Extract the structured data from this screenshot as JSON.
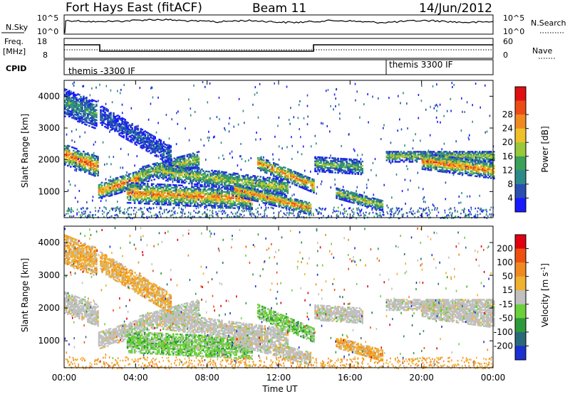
{
  "header": {
    "station": "Fort Hays East (fitACF)",
    "beam": "Beam 11",
    "date": "14/Jun/2012"
  },
  "top_panels": {
    "nsky": {
      "label": "N.Sky",
      "ticks": [
        "10^5",
        "10^0"
      ],
      "right_label": "N.Search",
      "right_ticks": [
        "10^5",
        "10^0"
      ]
    },
    "freq": {
      "label": "Freq.",
      "unit": "[MHz]",
      "ticks": [
        "18",
        "8"
      ],
      "right_label": "Nave",
      "right_ticks": [
        "60",
        "0"
      ]
    },
    "cpid": {
      "label": "CPID",
      "segments": [
        {
          "start_h": 0,
          "end_h": 18,
          "text": "themis -3300 IF"
        },
        {
          "start_h": 18,
          "end_h": 24,
          "text": "themis 3300 IF"
        }
      ]
    }
  },
  "chart_data": [
    {
      "type": "heatmap",
      "name": "power",
      "ylabel": "Slant Range [km]",
      "xlim": [
        0,
        24
      ],
      "ylim": [
        180,
        4500
      ],
      "yticks": [
        1000,
        2000,
        3000,
        4000
      ],
      "colorbar": {
        "label": "Power [dB]",
        "ticks": [
          "4",
          "8",
          "12",
          "16",
          "20",
          "24",
          "28"
        ],
        "colors": [
          "#1a1aff",
          "#2a4fb0",
          "#2e8a8a",
          "#3aa05a",
          "#9ac83a",
          "#f0c028",
          "#f08a20",
          "#ee4a18",
          "#e01010"
        ]
      },
      "bands": [
        {
          "t0": 0,
          "t1": 1.9,
          "r0": 2150,
          "r1": 1750,
          "w": 320,
          "level": 0.85
        },
        {
          "t0": 1.9,
          "t1": 4.2,
          "r0": 1000,
          "r1": 1400,
          "w": 260,
          "level": 0.8
        },
        {
          "t0": 4.2,
          "t1": 7.5,
          "r0": 1500,
          "r1": 2000,
          "w": 260,
          "level": 0.55
        },
        {
          "t0": 3.5,
          "t1": 10.5,
          "r0": 950,
          "r1": 750,
          "w": 320,
          "level": 0.75
        },
        {
          "t0": 5.5,
          "t1": 12.5,
          "r0": 1600,
          "r1": 1100,
          "w": 260,
          "level": 0.55
        },
        {
          "t0": 9.5,
          "t1": 13.8,
          "r0": 1050,
          "r1": 450,
          "w": 200,
          "level": 0.8
        },
        {
          "t0": 10.8,
          "t1": 14.0,
          "r0": 1900,
          "r1": 1150,
          "w": 220,
          "level": 0.75
        },
        {
          "t0": 14.0,
          "t1": 16.7,
          "r0": 1850,
          "r1": 1750,
          "w": 230,
          "level": 0.45
        },
        {
          "t0": 15.2,
          "t1": 17.8,
          "r0": 950,
          "r1": 550,
          "w": 180,
          "level": 0.55
        },
        {
          "t0": 18.0,
          "t1": 24.0,
          "r0": 2100,
          "r1": 2100,
          "w": 180,
          "level": 0.55
        },
        {
          "t0": 20.0,
          "t1": 24.0,
          "r0": 1950,
          "r1": 1650,
          "w": 260,
          "level": 0.8
        },
        {
          "t0": 0.0,
          "t1": 1.8,
          "r0": 3800,
          "r1": 3400,
          "w": 450,
          "level": 0.35
        },
        {
          "t0": 2.0,
          "t1": 6.0,
          "r0": 3400,
          "r1": 2100,
          "w": 300,
          "level": 0.2
        }
      ]
    },
    {
      "type": "heatmap",
      "name": "velocity",
      "ylabel": "Slant Range [km]",
      "xlabel": "Time UT",
      "xlim": [
        0,
        24
      ],
      "ylim": [
        180,
        4500
      ],
      "yticks": [
        1000,
        2000,
        3000,
        4000
      ],
      "xticks": [
        "00:00",
        "04:00",
        "08:00",
        "12:00",
        "16:00",
        "20:00",
        "00:00"
      ],
      "colorbar": {
        "label": "Velocity [m s",
        "label_sup": "-1",
        "label_end": "]",
        "ticks": [
          "200",
          "100",
          "50",
          "15",
          "-15",
          "-50",
          "-100",
          "-200"
        ],
        "colors": [
          "#1a30d0",
          "#2a6a78",
          "#2c9a3a",
          "#6cd03a",
          "#c0c0c0",
          "#f0b030",
          "#f08a20",
          "#ee5010",
          "#e00010"
        ]
      },
      "bands": [
        {
          "t0": 0,
          "t1": 1.9,
          "r0": 2150,
          "r1": 1750,
          "w": 320,
          "kind": "gray"
        },
        {
          "t0": 1.9,
          "t1": 4.2,
          "r0": 1000,
          "r1": 1400,
          "w": 260,
          "kind": "gray"
        },
        {
          "t0": 4.2,
          "t1": 7.5,
          "r0": 1500,
          "r1": 2000,
          "w": 260,
          "kind": "gray"
        },
        {
          "t0": 3.5,
          "t1": 10.5,
          "r0": 950,
          "r1": 750,
          "w": 320,
          "kind": "green"
        },
        {
          "t0": 5.5,
          "t1": 12.5,
          "r0": 1600,
          "r1": 1100,
          "w": 260,
          "kind": "gray"
        },
        {
          "t0": 9.5,
          "t1": 13.8,
          "r0": 1050,
          "r1": 450,
          "w": 200,
          "kind": "gray"
        },
        {
          "t0": 10.8,
          "t1": 14.0,
          "r0": 1900,
          "r1": 1150,
          "w": 220,
          "kind": "green"
        },
        {
          "t0": 14.0,
          "t1": 16.7,
          "r0": 1850,
          "r1": 1750,
          "w": 230,
          "kind": "gray"
        },
        {
          "t0": 15.2,
          "t1": 17.8,
          "r0": 950,
          "r1": 550,
          "w": 180,
          "kind": "orange"
        },
        {
          "t0": 18.0,
          "t1": 24.0,
          "r0": 2100,
          "r1": 2100,
          "w": 180,
          "kind": "gray"
        },
        {
          "t0": 20.0,
          "t1": 24.0,
          "r0": 1950,
          "r1": 1650,
          "w": 260,
          "kind": "gray"
        },
        {
          "t0": 0.0,
          "t1": 1.8,
          "r0": 3800,
          "r1": 3400,
          "w": 450,
          "kind": "orange"
        },
        {
          "t0": 2.0,
          "t1": 6.0,
          "r0": 3400,
          "r1": 2100,
          "w": 300,
          "kind": "orange"
        }
      ]
    }
  ]
}
